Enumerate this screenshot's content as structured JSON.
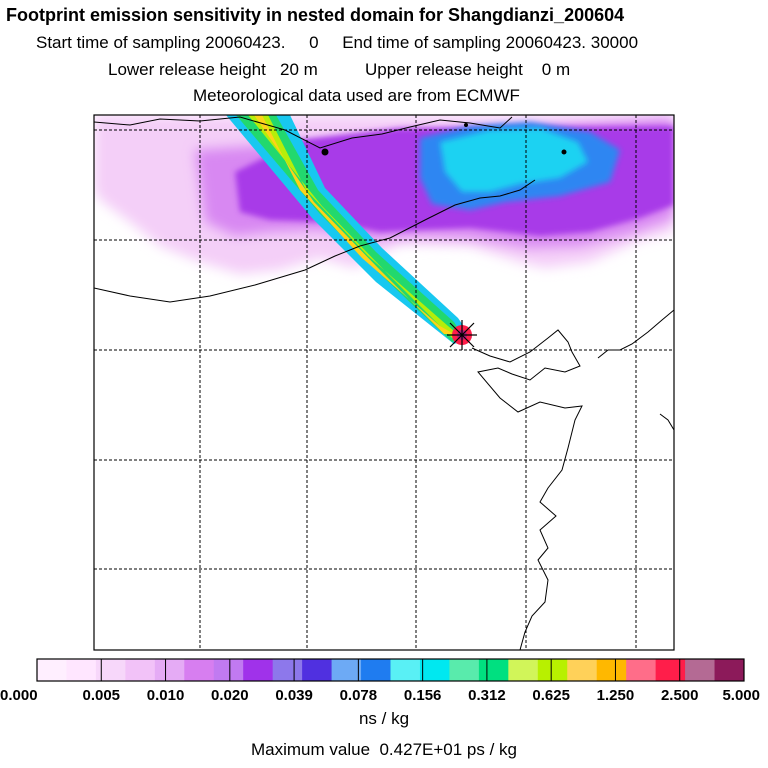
{
  "header": {
    "title": "Footprint emission sensitivity in nested domain for Shangdianzi_200604",
    "start_label": "Start time of sampling 20060423.",
    "start_value": "0",
    "end_label": "End time of sampling 20060423. 30000",
    "lower_label": "Lower release height",
    "lower_value": "20 m",
    "upper_label": "Upper release height",
    "upper_value": "0 m",
    "met_note": "Meteorological data used are from ECMWF"
  },
  "chart_data": {
    "type": "heatmap",
    "title": "Footprint emission sensitivity in nested domain for Shangdianzi_200604",
    "colorbar": {
      "tick_labels": [
        "0.000",
        "0.005",
        "0.010",
        "0.020",
        "0.039",
        "0.078",
        "0.156",
        "0.312",
        "0.625",
        "1.250",
        "2.500",
        "5.000"
      ],
      "colors": [
        "#ffe6ff",
        "#f2c2f8",
        "#d77ef0",
        "#a032ea",
        "#5030e0",
        "#1f7cf0",
        "#00e8f0",
        "#00e080",
        "#b8f000",
        "#ffb800",
        "#ff1e4a",
        "#8c1a5a"
      ],
      "units": "ns / kg"
    },
    "max_value_text": "Maximum value  0.427E+01 ps / kg",
    "grid": true,
    "receptor_marker": "star"
  }
}
